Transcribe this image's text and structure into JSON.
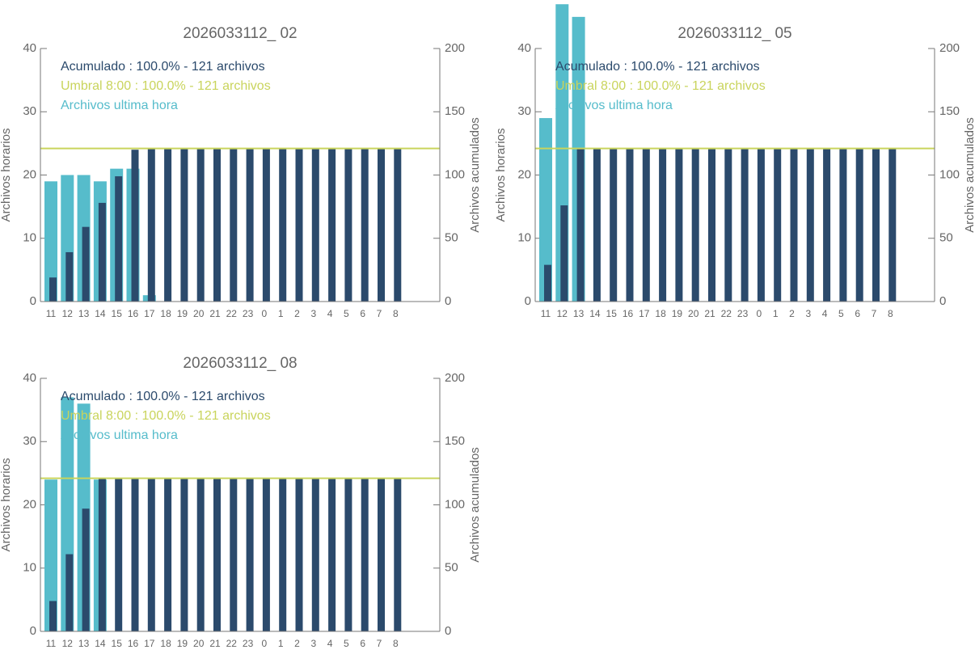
{
  "chart_data": [
    {
      "type": "bar",
      "title": "2026033112_ 02",
      "categories": [
        "11",
        "12",
        "13",
        "14",
        "15",
        "16",
        "17",
        "18",
        "19",
        "20",
        "21",
        "22",
        "23",
        "0",
        "1",
        "2",
        "3",
        "4",
        "5",
        "6",
        "7",
        "8"
      ],
      "ylabel": "Archivos horarios",
      "y2label": "Archivos acumulados",
      "ylim": [
        0,
        40
      ],
      "yticks": [
        0,
        10,
        20,
        30,
        40
      ],
      "y2lim": [
        0,
        200
      ],
      "y2ticks": [
        0,
        50,
        100,
        150,
        200
      ],
      "series": [
        {
          "name": "Acumulado : 100.0% - 121 archivos",
          "color": "#2b4a6c",
          "axis": "y2",
          "values": [
            19,
            39,
            59,
            78,
            99,
            120,
            121,
            121,
            121,
            121,
            121,
            121,
            121,
            121,
            121,
            121,
            121,
            121,
            121,
            121,
            121,
            121
          ]
        },
        {
          "name": "Archivos ultima hora",
          "color": "#56bccb",
          "values": [
            19,
            20,
            20,
            19,
            21,
            21,
            1,
            0,
            0,
            0,
            0,
            0,
            0,
            0,
            0,
            0,
            0,
            0,
            0,
            0,
            0,
            0
          ]
        }
      ],
      "threshold": {
        "name": "Umbral 8:00 : 100.0% - 121 archivos",
        "color": "#c9d45c",
        "value": 121,
        "axis": "y2"
      }
    },
    {
      "type": "bar",
      "title": "2026033112_ 05",
      "categories": [
        "11",
        "12",
        "13",
        "14",
        "15",
        "16",
        "17",
        "18",
        "19",
        "20",
        "21",
        "22",
        "23",
        "0",
        "1",
        "2",
        "3",
        "4",
        "5",
        "6",
        "7",
        "8"
      ],
      "ylabel": "Archivos horarios",
      "y2label": "Archivos acumulados",
      "ylim": [
        0,
        40
      ],
      "yticks": [
        0,
        10,
        20,
        30,
        40
      ],
      "y2lim": [
        0,
        200
      ],
      "y2ticks": [
        0,
        50,
        100,
        150,
        200
      ],
      "series": [
        {
          "name": "Acumulado : 100.0% - 121 archivos",
          "color": "#2b4a6c",
          "axis": "y2",
          "values": [
            29,
            76,
            121,
            121,
            121,
            121,
            121,
            121,
            121,
            121,
            121,
            121,
            121,
            121,
            121,
            121,
            121,
            121,
            121,
            121,
            121,
            121
          ]
        },
        {
          "name": "Archivos ultima hora",
          "color": "#56bccb",
          "values": [
            29,
            47,
            45,
            0,
            0,
            0,
            0,
            0,
            0,
            0,
            0,
            0,
            0,
            0,
            0,
            0,
            0,
            0,
            0,
            0,
            0,
            0
          ]
        }
      ],
      "threshold": {
        "name": "Umbral 8:00 : 100.0% - 121 archivos",
        "color": "#c9d45c",
        "value": 121,
        "axis": "y2"
      }
    },
    {
      "type": "bar",
      "title": "2026033112_ 08",
      "categories": [
        "11",
        "12",
        "13",
        "14",
        "15",
        "16",
        "17",
        "18",
        "19",
        "20",
        "21",
        "22",
        "23",
        "0",
        "1",
        "2",
        "3",
        "4",
        "5",
        "6",
        "7",
        "8"
      ],
      "ylabel": "Archivos horarios",
      "y2label": "Archivos acumulados",
      "ylim": [
        0,
        40
      ],
      "yticks": [
        0,
        10,
        20,
        30,
        40
      ],
      "y2lim": [
        0,
        200
      ],
      "y2ticks": [
        0,
        50,
        100,
        150,
        200
      ],
      "series": [
        {
          "name": "Acumulado : 100.0% - 121 archivos",
          "color": "#2b4a6c",
          "axis": "y2",
          "values": [
            24,
            61,
            97,
            121,
            121,
            121,
            121,
            121,
            121,
            121,
            121,
            121,
            121,
            121,
            121,
            121,
            121,
            121,
            121,
            121,
            121,
            121
          ]
        },
        {
          "name": "Archivos ultima hora",
          "color": "#56bccb",
          "values": [
            24,
            37,
            36,
            24,
            0,
            0,
            0,
            0,
            0,
            0,
            0,
            0,
            0,
            0,
            0,
            0,
            0,
            0,
            0,
            0,
            0,
            0
          ]
        }
      ],
      "threshold": {
        "name": "Umbral 8:00 : 100.0% - 121 archivos",
        "color": "#c9d45c",
        "value": 121,
        "axis": "y2"
      }
    }
  ]
}
